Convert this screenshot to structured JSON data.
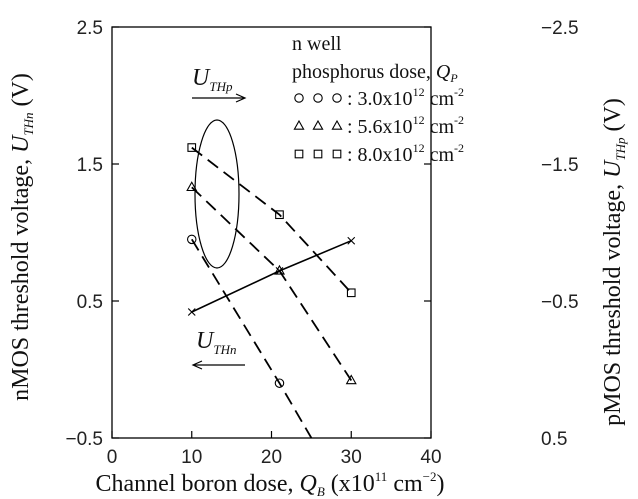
{
  "chart_data": {
    "type": "line",
    "xlabel": {
      "main": "Channel boron dose, ",
      "sym": "Q",
      "sub": "B",
      "unit_open": " (x10",
      "unit_exp1": "11",
      "unit_mid": " cm",
      "unit_exp2": "−2",
      "unit_close": ")"
    },
    "ylabel_left": {
      "main": "nMOS threshold voltage, ",
      "sym": "U",
      "sub": "THn",
      "unit": " (V)"
    },
    "ylabel_right": {
      "main": "pMOS threshold voltage, ",
      "sym": "U",
      "sub": "THp",
      "unit": " (V)"
    },
    "xlim": [
      0,
      40
    ],
    "ylim_left": [
      -0.5,
      2.5
    ],
    "ylim_right": [
      0.5,
      -2.5
    ],
    "x_ticks": [
      0,
      10,
      20,
      30,
      40
    ],
    "x_tick_labels": [
      "0",
      "10",
      "20",
      "30",
      "40"
    ],
    "left_ticks": [
      -0.5,
      0.5,
      1.5,
      2.5
    ],
    "left_tick_labels": [
      "−0.5",
      "0.5",
      "1.5",
      "2.5"
    ],
    "right_ticks": [
      0.5,
      -0.5,
      -1.5,
      -2.5
    ],
    "right_tick_labels": [
      "0.5",
      "−0.5",
      "−1.5",
      "−2.5"
    ],
    "grid": false,
    "legend": {
      "title1": "n well",
      "title2_main": "phosphorus dose, ",
      "title2_sym": "Q",
      "title2_sub": "P",
      "entries": [
        {
          "marker": "circle",
          "text": ": 3.0x10",
          "exp": "12",
          "unit": " cm",
          "unit_exp": "-2"
        },
        {
          "marker": "triangle",
          "text": ": 5.6x10",
          "exp": "12",
          "unit": " cm",
          "unit_exp": "-2"
        },
        {
          "marker": "square",
          "text": ": 8.0x10",
          "exp": "12",
          "unit": " cm",
          "unit_exp": "-2"
        }
      ]
    },
    "series": [
      {
        "axis": "left",
        "marker": "x",
        "line": "solid",
        "x": [
          10,
          21,
          30
        ],
        "y": [
          0.42,
          0.72,
          0.94
        ]
      },
      {
        "axis": "right",
        "marker": "circle",
        "line": "dashed",
        "x": [
          10,
          21,
          25
        ],
        "y": [
          -0.95,
          0.1,
          0.5
        ]
      },
      {
        "axis": "right",
        "marker": "triangle",
        "line": "dashed",
        "x": [
          10,
          21,
          30
        ],
        "y": [
          -1.33,
          -0.72,
          0.08
        ]
      },
      {
        "axis": "right",
        "marker": "square",
        "line": "dashed",
        "x": [
          10,
          21,
          30
        ],
        "y": [
          -1.62,
          -1.13,
          -0.56
        ]
      }
    ],
    "series_marked": [
      true,
      true,
      true,
      true
    ],
    "annotations": {
      "uthp": {
        "sym": "U",
        "sub": "THp"
      },
      "uthn": {
        "sym": "U",
        "sub": "THn"
      }
    }
  }
}
